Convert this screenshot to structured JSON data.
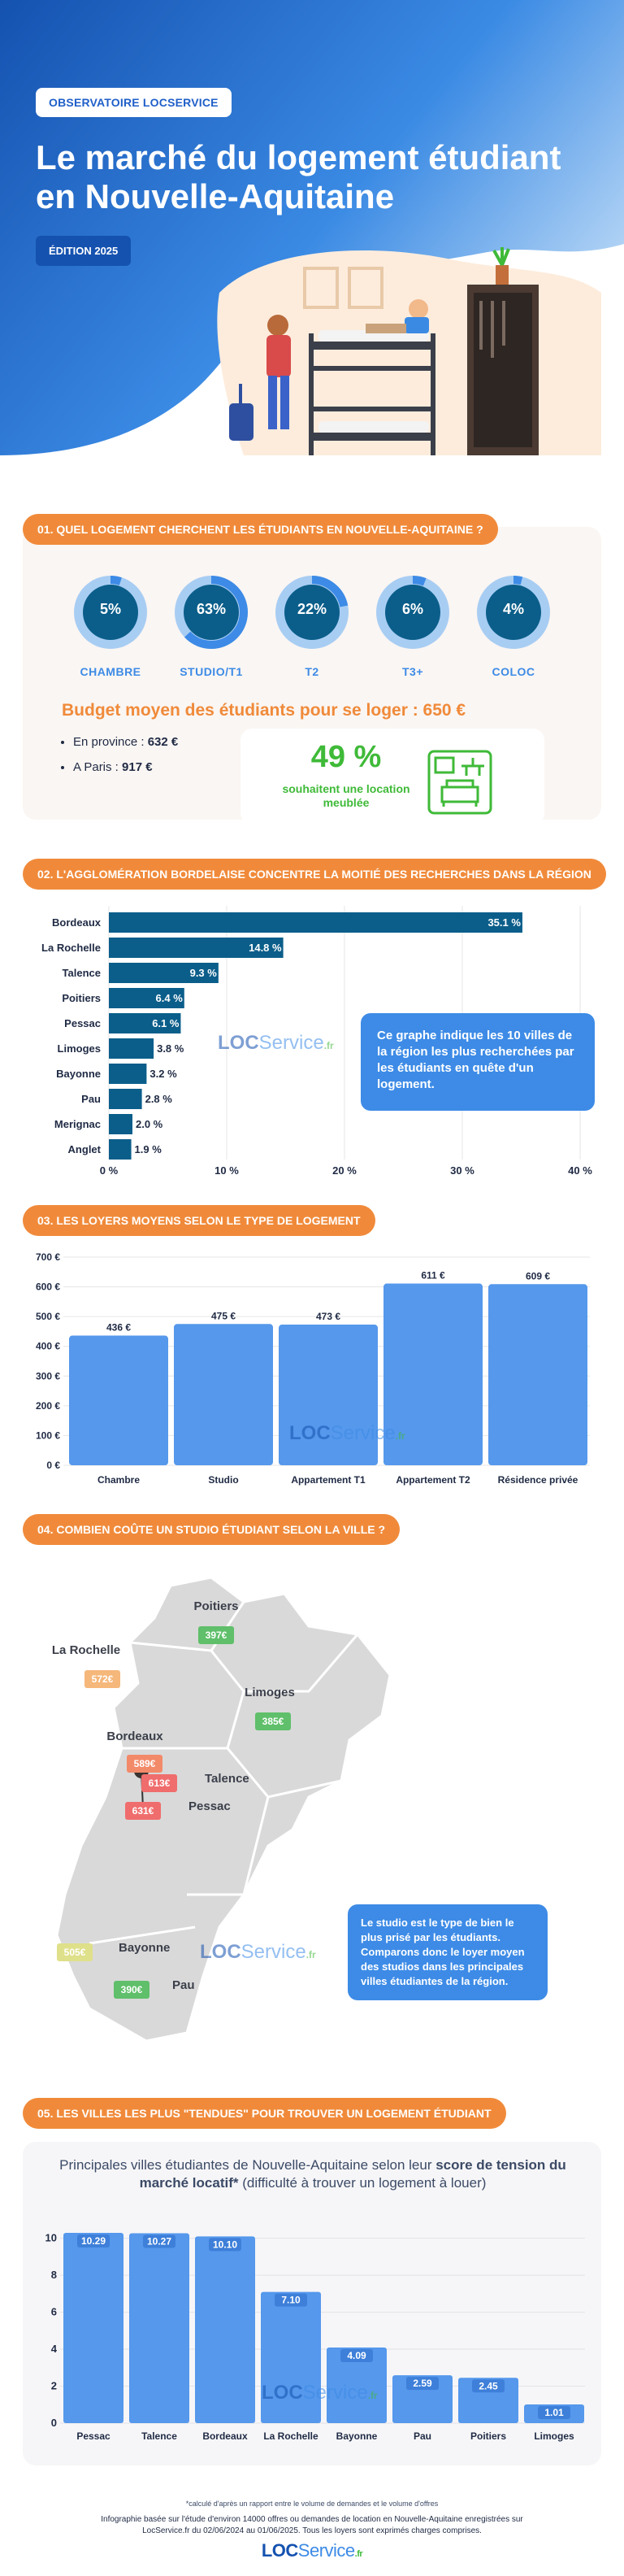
{
  "hero": {
    "tag": "OBSERVATOIRE LOCSERVICE",
    "title": "Le marché du logement étudiant en Nouvelle-Aquitaine",
    "edition": "ÉDITION 2025"
  },
  "sections": {
    "s1": "01. QUEL LOGEMENT CHERCHENT LES ÉTUDIANTS EN NOUVELLE-AQUITAINE ?",
    "s2": "02. L'AGGLOMÉRATION BORDELAISE CONCENTRE LA MOITIÉ DES RECHERCHES DANS LA RÉGION",
    "s3": "03. LES LOYERS MOYENS SELON LE TYPE DE LOGEMENT",
    "s4": "04. COMBIEN COÛTE UN STUDIO ÉTUDIANT SELON LA VILLE ?",
    "s5": "05. LES VILLES LES PLUS \"TENDUES\" POUR TROUVER UN LOGEMENT ÉTUDIANT"
  },
  "housing_types": [
    {
      "label": "CHAMBRE",
      "pct": "5%",
      "value": 5
    },
    {
      "label": "STUDIO/T1",
      "pct": "63%",
      "value": 63
    },
    {
      "label": "T2",
      "pct": "22%",
      "value": 22
    },
    {
      "label": "T3+",
      "pct": "6%",
      "value": 6
    },
    {
      "label": "COLOC",
      "pct": "4%",
      "value": 4
    }
  ],
  "budget": {
    "title": "Budget moyen des étudiants pour se loger : 650 €",
    "province_label": "En province : ",
    "province_value": "632 €",
    "paris_label": "A Paris : ",
    "paris_value": "917 €",
    "furnished_pct": "49 %",
    "furnished_text": "souhaitent une location meublée"
  },
  "watermark": {
    "loc": "LOC",
    "service": "Service",
    "fr": ".fr"
  },
  "callouts": {
    "c1": "Ce graphe indique les 10 villes de la région les plus recherchées par les étudiants en quête d'un logement.",
    "c2": "Le studio est le type de bien le plus prisé par les étudiants. Comparons donc le loyer moyen des studios dans les principales villes étudiantes de la région."
  },
  "chart_data": [
    {
      "type": "bar",
      "orientation": "horizontal",
      "categories": [
        "Bordeaux",
        "La Rochelle",
        "Talence",
        "Poitiers",
        "Pessac",
        "Limoges",
        "Bayonne",
        "Pau",
        "Merignac",
        "Anglet"
      ],
      "values": [
        35.1,
        14.8,
        9.3,
        6.4,
        6.1,
        3.8,
        3.2,
        2.8,
        2.0,
        1.9
      ],
      "labels": [
        "35.1 %",
        "14.8 %",
        "9.3 %",
        "6.4 %",
        "6.1 %",
        "3.8 %",
        "3.2 %",
        "2.8 %",
        "2.0 %",
        "1.9 %"
      ],
      "xticks": [
        "0 %",
        "10 %",
        "20 %",
        "30 %",
        "40 %"
      ],
      "xlim": [
        0,
        40
      ],
      "grid": true
    },
    {
      "type": "bar",
      "categories": [
        "Chambre",
        "Studio",
        "Appartement T1",
        "Appartement T2",
        "Résidence privée"
      ],
      "values": [
        436,
        475,
        473,
        611,
        609
      ],
      "labels": [
        "436 €",
        "475 €",
        "473 €",
        "611 €",
        "609 €"
      ],
      "yticks": [
        "0 €",
        "100 €",
        "200 €",
        "300 €",
        "400 €",
        "500 €",
        "600 €",
        "700 €"
      ],
      "ylim": [
        0,
        700
      ],
      "grid": true
    },
    {
      "type": "map",
      "cities": [
        {
          "name": "Poitiers",
          "price": "397€",
          "value": 397
        },
        {
          "name": "La Rochelle",
          "price": "572€",
          "value": 572
        },
        {
          "name": "Limoges",
          "price": "385€",
          "value": 385
        },
        {
          "name": "Bordeaux",
          "price": "589€",
          "value": 589
        },
        {
          "name": "Talence",
          "price": "613€",
          "value": 613
        },
        {
          "name": "Pessac",
          "price": "631€",
          "value": 631
        },
        {
          "name": "Bayonne",
          "price": "505€",
          "value": 505
        },
        {
          "name": "Pau",
          "price": "390€",
          "value": 390
        }
      ]
    },
    {
      "type": "bar",
      "title": "Principales villes étudiantes de Nouvelle-Aquitaine selon leur score de tension du marché locatif* (difficulté à trouver un logement à louer)",
      "categories": [
        "Pessac",
        "Talence",
        "Bordeaux",
        "La Rochelle",
        "Bayonne",
        "Pau",
        "Poitiers",
        "Limoges"
      ],
      "values": [
        10.29,
        10.27,
        10.1,
        7.1,
        4.09,
        2.59,
        2.45,
        1.01
      ],
      "labels": [
        "10.29",
        "10.27",
        "10.10",
        "7.10",
        "4.09",
        "2.59",
        "2.45",
        "1.01"
      ],
      "yticks": [
        "0",
        "2",
        "4",
        "6",
        "8",
        "10"
      ],
      "ylim": [
        0,
        10.6
      ],
      "grid": true
    }
  ],
  "tension": {
    "sub_a": "Principales villes étudiantes de Nouvelle-Aquitaine selon leur ",
    "sub_b": "score de tension du marché locatif*",
    "sub_c": " (difficulté à trouver un logement à louer)"
  },
  "footer": {
    "note": "*calculé d'après un rapport entre le volume de demandes et le volume d'offres",
    "text": "Infographie basée sur l'étude d'environ 14000 offres ou demandes de location en Nouvelle-Aquitaine enregistrées sur LocService.fr du 02/06/2024 au 01/06/2025. Tous les loyers sont exprimés charges comprises."
  },
  "colors": {
    "orange": "#f08a3a",
    "dark_blue": "#0b5e8a",
    "light_blue": "#3d8be6",
    "bar_blue": "#5598ec",
    "green": "#3fba38"
  }
}
